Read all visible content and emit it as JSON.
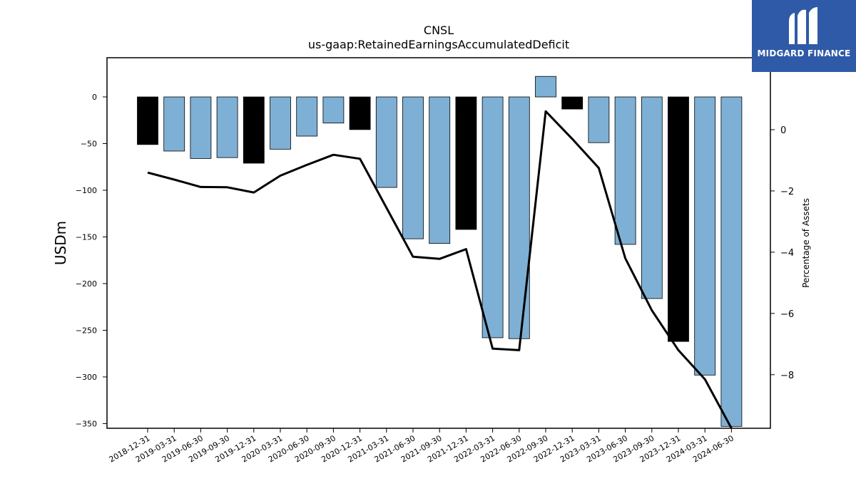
{
  "chart_data": {
    "type": "bar",
    "title": "CNSL",
    "subtitle": "us-gaap:RetainedEarningsAccumulatedDeficit",
    "ylabel": "USDm",
    "y2label": "Percentage of Assets",
    "ylim": [
      -355,
      42
    ],
    "y2lim": [
      -9.75,
      2.35
    ],
    "yticks": [
      0,
      -50,
      -100,
      -150,
      -200,
      -250,
      -300,
      -350
    ],
    "y2ticks": [
      0,
      -2,
      -4,
      -6,
      -8
    ],
    "categories": [
      "2018-12-31",
      "2019-03-31",
      "2019-06-30",
      "2019-09-30",
      "2019-12-31",
      "2020-03-31",
      "2020-06-30",
      "2020-09-30",
      "2020-12-31",
      "2021-03-31",
      "2021-06-30",
      "2021-09-30",
      "2021-12-31",
      "2022-03-31",
      "2022-06-30",
      "2022-09-30",
      "2022-12-31",
      "2023-03-31",
      "2023-06-30",
      "2023-09-30",
      "2023-12-31",
      "2024-03-31",
      "2024-06-30"
    ],
    "series": [
      {
        "type": "bar",
        "values": [
          -51,
          -58,
          -66,
          -65,
          -71,
          -56,
          -42,
          -28,
          -35,
          -97,
          -152,
          -157,
          -142,
          -258,
          -259,
          22,
          -13,
          -49,
          -158,
          -216,
          -262,
          -298,
          -353
        ],
        "colors": [
          "#000000",
          "#7eb0d5",
          "#7eb0d5",
          "#7eb0d5",
          "#000000",
          "#7eb0d5",
          "#7eb0d5",
          "#7eb0d5",
          "#000000",
          "#7eb0d5",
          "#7eb0d5",
          "#7eb0d5",
          "#000000",
          "#7eb0d5",
          "#7eb0d5",
          "#7eb0d5",
          "#000000",
          "#7eb0d5",
          "#7eb0d5",
          "#7eb0d5",
          "#000000",
          "#7eb0d5",
          "#7eb0d5"
        ]
      },
      {
        "type": "line",
        "axis": "right",
        "color": "#000000",
        "values": [
          -1.4,
          -1.63,
          -1.87,
          -1.88,
          -2.05,
          -1.5,
          -1.15,
          -0.82,
          -0.95,
          -2.55,
          -4.15,
          -4.22,
          -3.9,
          -7.15,
          -7.2,
          0.6,
          -0.3,
          -1.25,
          -4.2,
          -5.9,
          -7.2,
          -8.15,
          -9.75
        ]
      }
    ]
  },
  "brand": {
    "name": "MIDGARD FINANCE",
    "color": "#2f5aa8"
  }
}
